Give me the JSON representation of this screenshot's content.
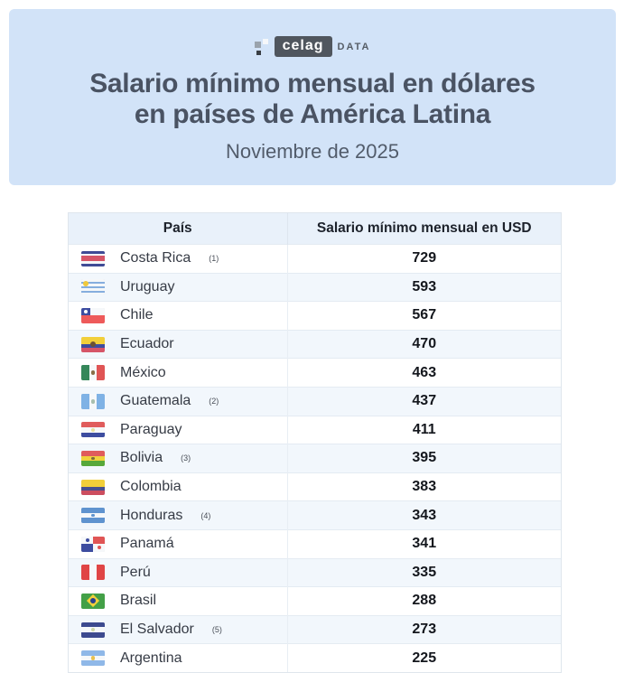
{
  "hero": {
    "logo": {
      "text": "celag",
      "suffix": "DATA"
    },
    "title_line1": "Salario mínimo mensual en dólares",
    "title_line2": "en países de América Latina",
    "subtitle": "Noviembre de 2025"
  },
  "colors": {
    "hero_bg": "#d2e3f8",
    "title_text": "#4a5363",
    "header_row_bg": "#e9f1fa",
    "alt_row_bg": "#f2f7fc",
    "table_border": "#dfe6ed"
  },
  "chart_data": {
    "type": "table",
    "title": "Salario mínimo mensual en dólares en países de América Latina",
    "subtitle": "Noviembre de 2025",
    "columns": [
      "País",
      "Salario mínimo mensual en USD"
    ],
    "rows": [
      {
        "country": "Costa Rica",
        "note": "(1)",
        "value": 729,
        "flag": "costa-rica"
      },
      {
        "country": "Uruguay",
        "note": "",
        "value": 593,
        "flag": "uruguay"
      },
      {
        "country": "Chile",
        "note": "",
        "value": 567,
        "flag": "chile"
      },
      {
        "country": "Ecuador",
        "note": "",
        "value": 470,
        "flag": "ecuador"
      },
      {
        "country": "México",
        "note": "",
        "value": 463,
        "flag": "mexico"
      },
      {
        "country": "Guatemala",
        "note": "(2)",
        "value": 437,
        "flag": "guatemala"
      },
      {
        "country": "Paraguay",
        "note": "",
        "value": 411,
        "flag": "paraguay"
      },
      {
        "country": "Bolivia",
        "note": "(3)",
        "value": 395,
        "flag": "bolivia"
      },
      {
        "country": "Colombia",
        "note": "",
        "value": 383,
        "flag": "colombia"
      },
      {
        "country": "Honduras",
        "note": "(4)",
        "value": 343,
        "flag": "honduras"
      },
      {
        "country": "Panamá",
        "note": "",
        "value": 341,
        "flag": "panama"
      },
      {
        "country": "Perú",
        "note": "",
        "value": 335,
        "flag": "peru"
      },
      {
        "country": "Brasil",
        "note": "",
        "value": 288,
        "flag": "brazil"
      },
      {
        "country": "El Salvador",
        "note": "(5)",
        "value": 273,
        "flag": "el-salvador"
      },
      {
        "country": "Argentina",
        "note": "",
        "value": 225,
        "flag": "argentina"
      }
    ]
  }
}
